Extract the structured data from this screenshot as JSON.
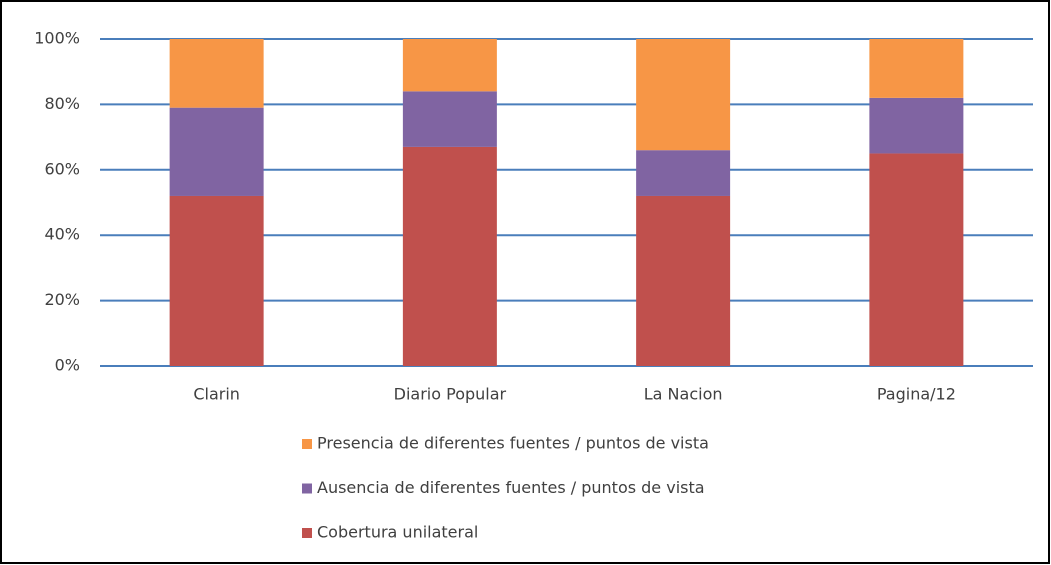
{
  "chart_data": {
    "type": "stacked_bar",
    "categories": [
      "Clarin",
      "Diario Popular",
      "La Nacion",
      "Pagina/12"
    ],
    "series": [
      {
        "name": "Cobertura unilateral",
        "color": "#c0504d",
        "values": [
          52,
          67,
          52,
          65
        ]
      },
      {
        "name": "Ausencia de diferentes fuentes / puntos de vista",
        "color": "#8064a2",
        "values": [
          27,
          17,
          14,
          17
        ]
      },
      {
        "name": "Presencia de diferentes fuentes / puntos de vista",
        "color": "#f79646",
        "values": [
          21,
          16,
          34,
          18
        ]
      }
    ],
    "ylim": [
      0,
      100
    ],
    "yticks": [
      {
        "value": 0,
        "label": "0%"
      },
      {
        "value": 20,
        "label": "20%"
      },
      {
        "value": 40,
        "label": "40%"
      },
      {
        "value": 60,
        "label": "60%"
      },
      {
        "value": 80,
        "label": "80%"
      },
      {
        "value": 100,
        "label": "100%"
      }
    ],
    "grid": true,
    "grid_color": "#4a7ebb",
    "legend": "bottom"
  }
}
